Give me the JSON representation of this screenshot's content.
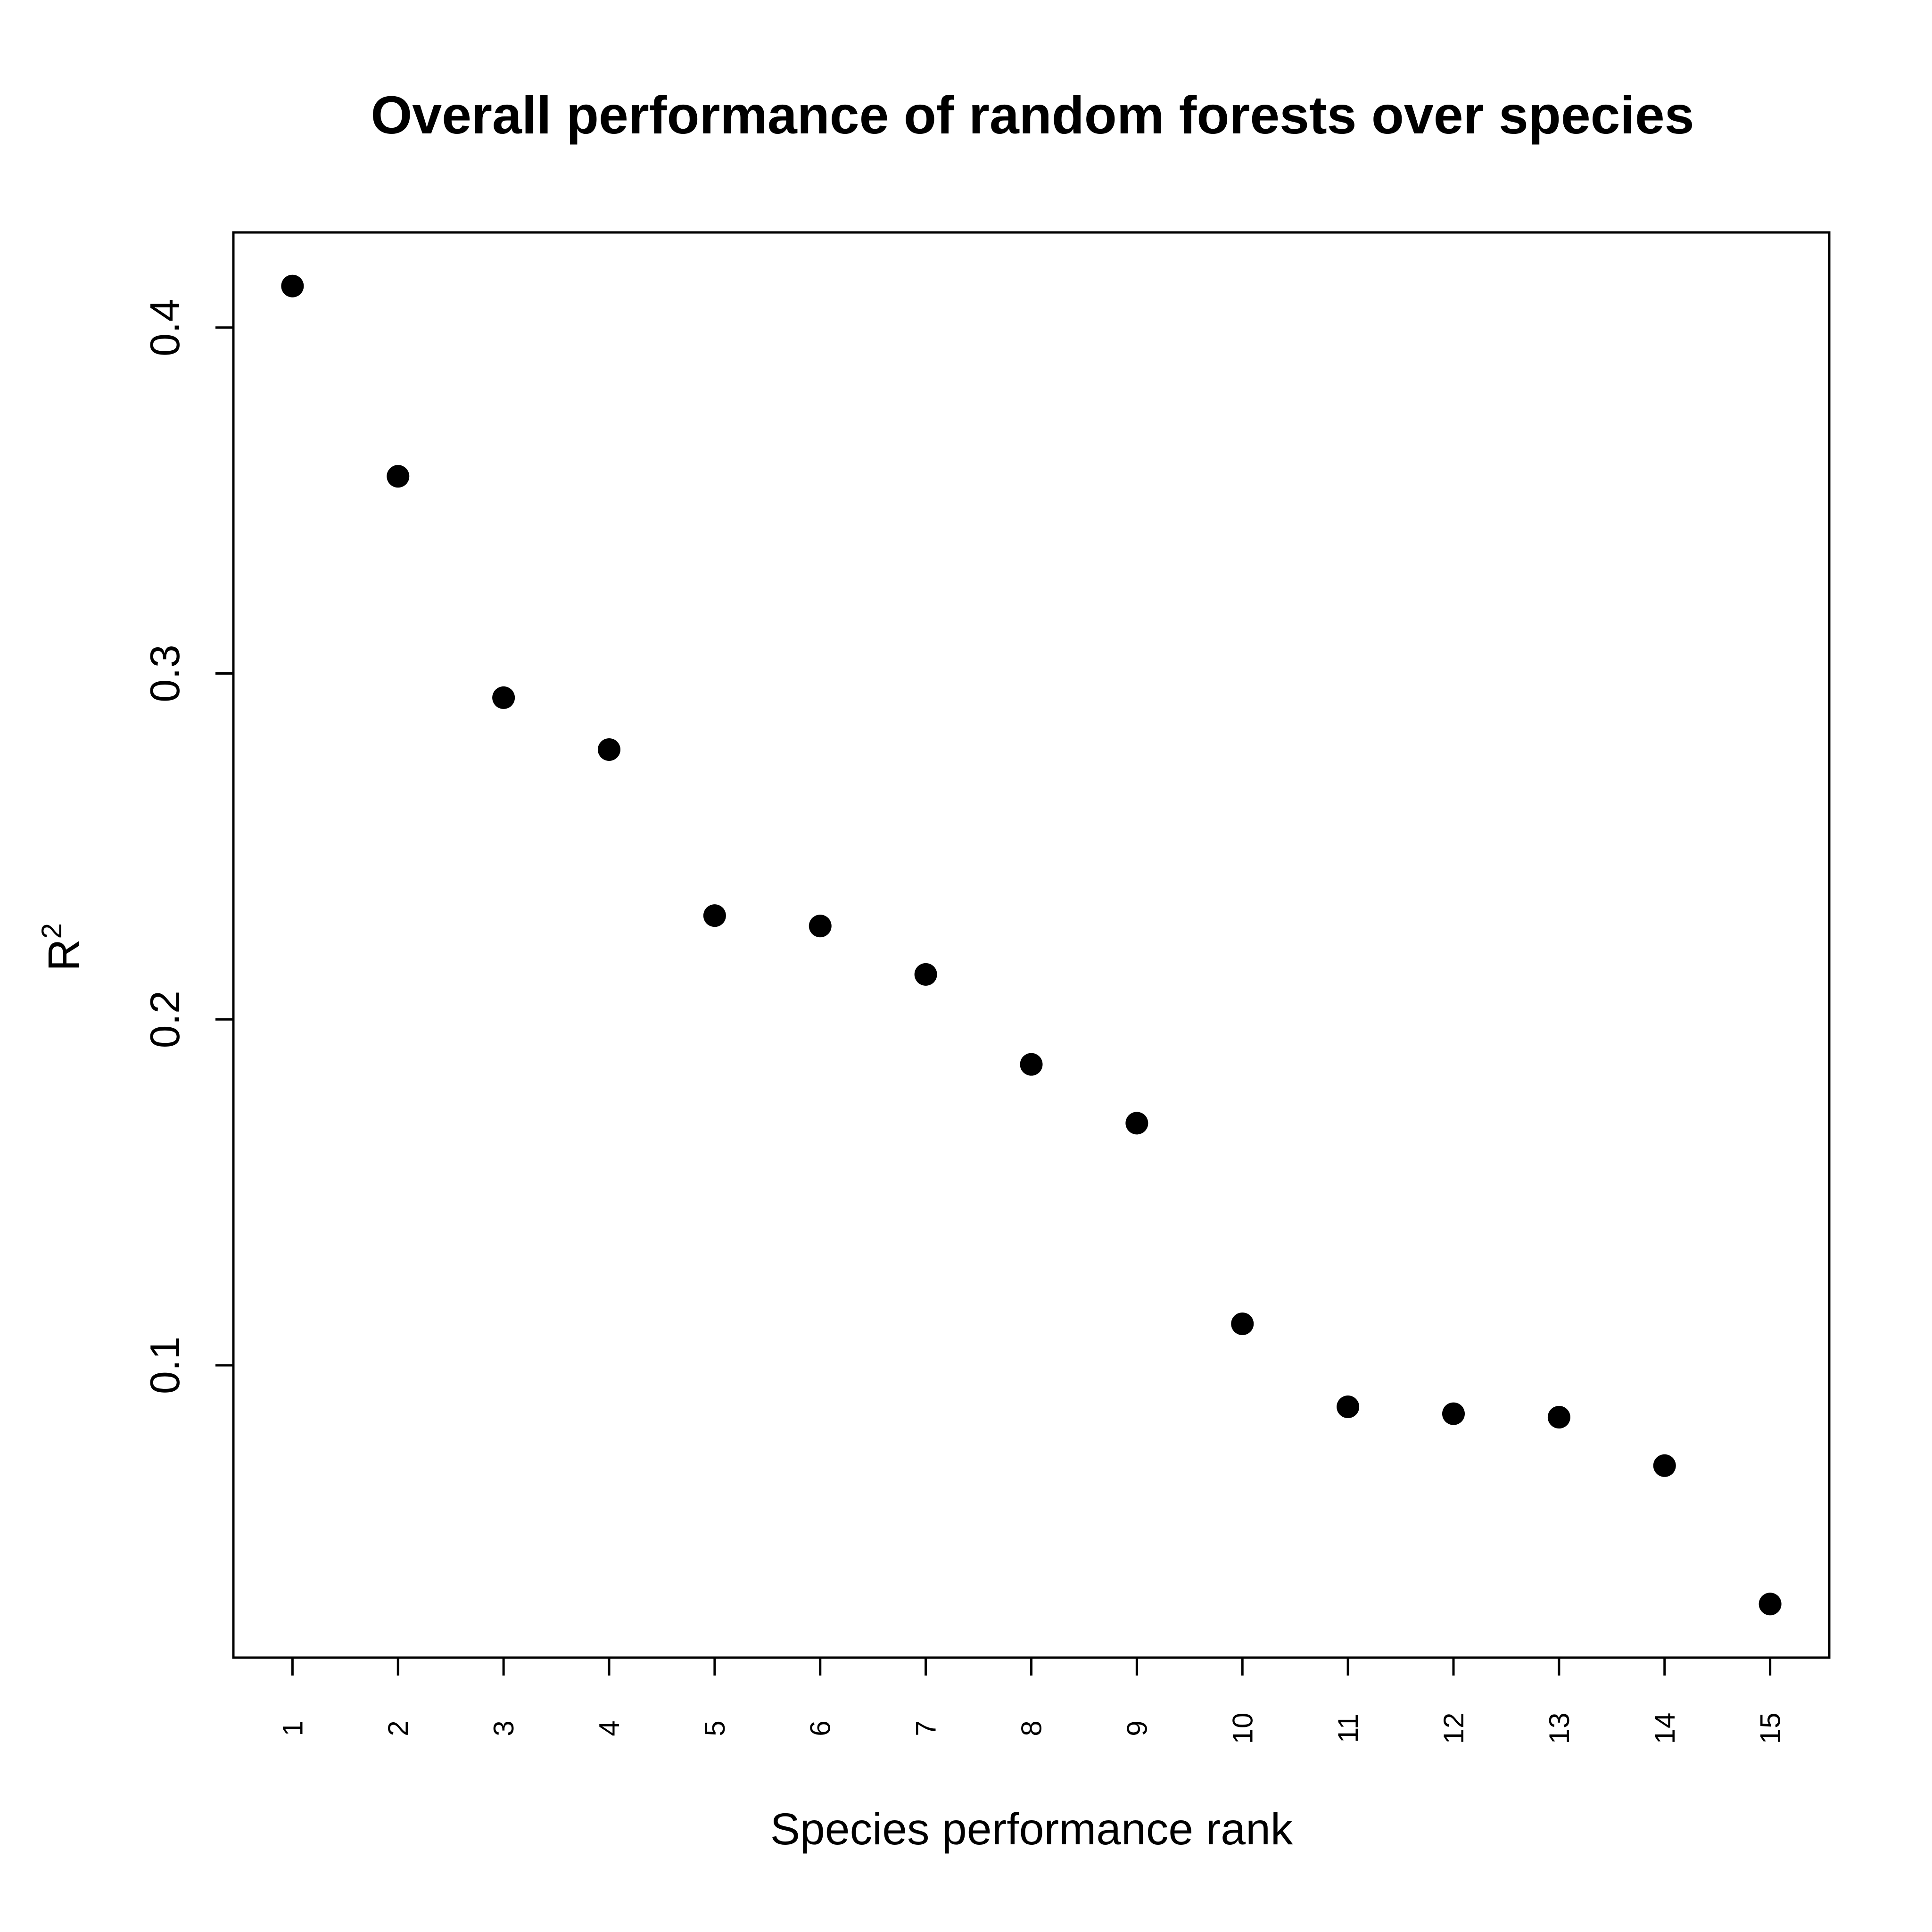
{
  "chart_data": {
    "type": "scatter",
    "title": "Overall performance of random forests over species",
    "xlabel": "Species performance rank",
    "ylabel_base": "R",
    "ylabel_superscript": "2",
    "x": [
      1,
      2,
      3,
      4,
      5,
      6,
      7,
      8,
      9,
      10,
      11,
      12,
      13,
      14,
      15
    ],
    "x_tick_labels": [
      "1",
      "2",
      "3",
      "4",
      "5",
      "6",
      "7",
      "8",
      "9",
      "10",
      "11",
      "12",
      "13",
      "14",
      "15"
    ],
    "y": [
      0.412,
      0.357,
      0.293,
      0.278,
      0.23,
      0.227,
      0.213,
      0.187,
      0.17,
      0.112,
      0.088,
      0.086,
      0.085,
      0.071,
      0.031
    ],
    "y_ticks": [
      0.1,
      0.2,
      0.3,
      0.4
    ],
    "y_tick_labels": [
      "0.1",
      "0.2",
      "0.3",
      "0.4"
    ],
    "xlim": [
      0.44,
      15.56
    ],
    "ylim": [
      0.0155,
      0.4275
    ],
    "grid": false,
    "legend": "none",
    "point_color": "#000000",
    "frame_color": "#000000"
  }
}
